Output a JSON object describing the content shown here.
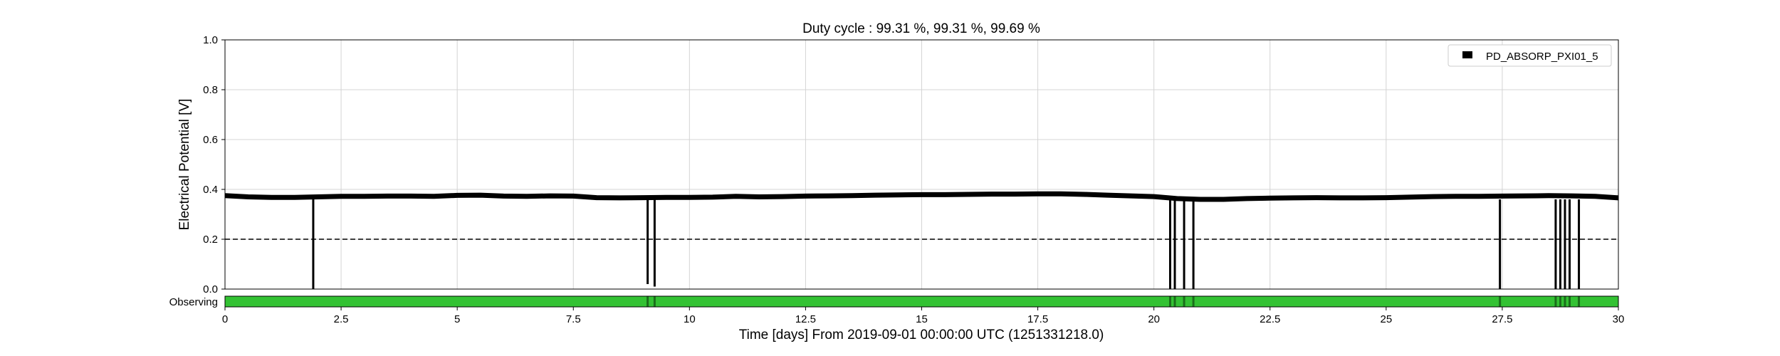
{
  "chart_data": {
    "type": "line",
    "title": "Duty cycle : 99.31 %, 99.31 %, 99.69 %",
    "xlabel": "Time [days] From 2019-09-01 00:00:00 UTC (1251331218.0)",
    "ylabel": "Electrical Potential [V]",
    "xlim": [
      0,
      30
    ],
    "ylim": [
      0,
      1.0
    ],
    "x_ticks": [
      0,
      2.5,
      5,
      7.5,
      10,
      12.5,
      15,
      17.5,
      20,
      22.5,
      25,
      27.5,
      30
    ],
    "x_tick_labels": [
      "0",
      "2.5",
      "5",
      "7.5",
      "10",
      "12.5",
      "15",
      "17.5",
      "20",
      "22.5",
      "25",
      "27.5",
      "30"
    ],
    "y_ticks": [
      0,
      0.2,
      0.4,
      0.6,
      0.8,
      1.0
    ],
    "y_tick_labels": [
      "0.0",
      "0.2",
      "0.4",
      "0.6",
      "0.8",
      "1.0"
    ],
    "grid": true,
    "legend_position": "top-right",
    "threshold": {
      "value": 0.2,
      "style": "dashed",
      "color": "#000000"
    },
    "series": [
      {
        "name": "PD_ABSORP_PXI01_5",
        "color": "#000000",
        "x": [
          0,
          0.5,
          1,
          1.5,
          2,
          2.5,
          3,
          3.5,
          4,
          4.5,
          5,
          5.5,
          6,
          6.5,
          7,
          7.5,
          8,
          8.5,
          9,
          9.5,
          10,
          10.5,
          11,
          11.5,
          12,
          12.5,
          13,
          13.5,
          14,
          14.5,
          15,
          15.5,
          16,
          16.5,
          17,
          17.5,
          18,
          18.5,
          19,
          19.5,
          20,
          20.5,
          21,
          21.5,
          22,
          22.5,
          23,
          23.5,
          24,
          24.5,
          25,
          25.5,
          26,
          26.5,
          27,
          27.5,
          28,
          28.5,
          29,
          29.5,
          30
        ],
        "y": [
          0.375,
          0.37,
          0.368,
          0.368,
          0.37,
          0.372,
          0.372,
          0.373,
          0.373,
          0.372,
          0.376,
          0.377,
          0.373,
          0.372,
          0.374,
          0.373,
          0.367,
          0.366,
          0.367,
          0.368,
          0.368,
          0.369,
          0.372,
          0.37,
          0.371,
          0.373,
          0.374,
          0.375,
          0.377,
          0.378,
          0.379,
          0.379,
          0.38,
          0.381,
          0.381,
          0.382,
          0.382,
          0.38,
          0.377,
          0.374,
          0.371,
          0.363,
          0.36,
          0.36,
          0.363,
          0.365,
          0.366,
          0.367,
          0.366,
          0.366,
          0.367,
          0.369,
          0.371,
          0.372,
          0.372,
          0.373,
          0.374,
          0.375,
          0.374,
          0.372,
          0.366
        ]
      }
    ],
    "spikes": [
      {
        "x": 1.9,
        "y": 0.0
      },
      {
        "x": 9.1,
        "y": 0.02
      },
      {
        "x": 9.25,
        "y": 0.01
      },
      {
        "x": 20.35,
        "y": 0.0
      },
      {
        "x": 20.45,
        "y": 0.0
      },
      {
        "x": 20.65,
        "y": 0.0
      },
      {
        "x": 20.85,
        "y": 0.0
      },
      {
        "x": 27.45,
        "y": 0.0
      },
      {
        "x": 28.65,
        "y": 0.0
      },
      {
        "x": 28.75,
        "y": 0.0
      },
      {
        "x": 28.85,
        "y": 0.0
      },
      {
        "x": 28.95,
        "y": 0.0
      },
      {
        "x": 29.15,
        "y": 0.0
      }
    ],
    "segment_bar": {
      "label": "Observing",
      "color": "#33c233",
      "gap_color": "#1a6e1a",
      "gaps": [
        9.1,
        9.25,
        20.35,
        20.45,
        20.65,
        20.85,
        27.45,
        28.65,
        28.75,
        28.85,
        28.95,
        29.15
      ]
    }
  }
}
